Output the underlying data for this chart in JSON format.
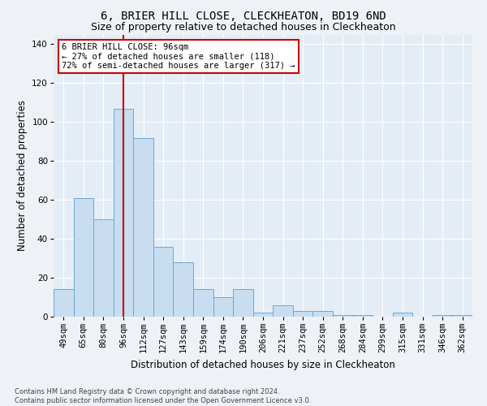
{
  "title": "6, BRIER HILL CLOSE, CLECKHEATON, BD19 6ND",
  "subtitle": "Size of property relative to detached houses in Cleckheaton",
  "xlabel": "Distribution of detached houses by size in Cleckheaton",
  "ylabel": "Number of detached properties",
  "categories": [
    "49sqm",
    "65sqm",
    "80sqm",
    "96sqm",
    "112sqm",
    "127sqm",
    "143sqm",
    "159sqm",
    "174sqm",
    "190sqm",
    "206sqm",
    "221sqm",
    "237sqm",
    "252sqm",
    "268sqm",
    "284sqm",
    "299sqm",
    "315sqm",
    "331sqm",
    "346sqm",
    "362sqm"
  ],
  "values": [
    14,
    61,
    50,
    107,
    92,
    36,
    28,
    14,
    10,
    14,
    2,
    6,
    3,
    3,
    1,
    1,
    0,
    2,
    0,
    1,
    1
  ],
  "bar_color": "#c8ddf0",
  "bar_edge_color": "#6aaad4",
  "marker_index": 3,
  "marker_color": "#cc0000",
  "ylim": [
    0,
    145
  ],
  "yticks": [
    0,
    20,
    40,
    60,
    80,
    100,
    120,
    140
  ],
  "annotation_line1": "6 BRIER HILL CLOSE: 96sqm",
  "annotation_line2": "← 27% of detached houses are smaller (118)",
  "annotation_line3": "72% of semi-detached houses are larger (317) →",
  "annotation_box_color": "#ffffff",
  "annotation_box_edge": "#cc0000",
  "footer": "Contains HM Land Registry data © Crown copyright and database right 2024.\nContains public sector information licensed under the Open Government Licence v3.0.",
  "bg_color": "#eef2f7",
  "plot_bg_color": "#e4edf5",
  "grid_color": "#ffffff",
  "title_fontsize": 10,
  "subtitle_fontsize": 9,
  "axis_label_fontsize": 8.5,
  "tick_fontsize": 7.5,
  "footer_fontsize": 6,
  "annotation_fontsize": 7.5
}
